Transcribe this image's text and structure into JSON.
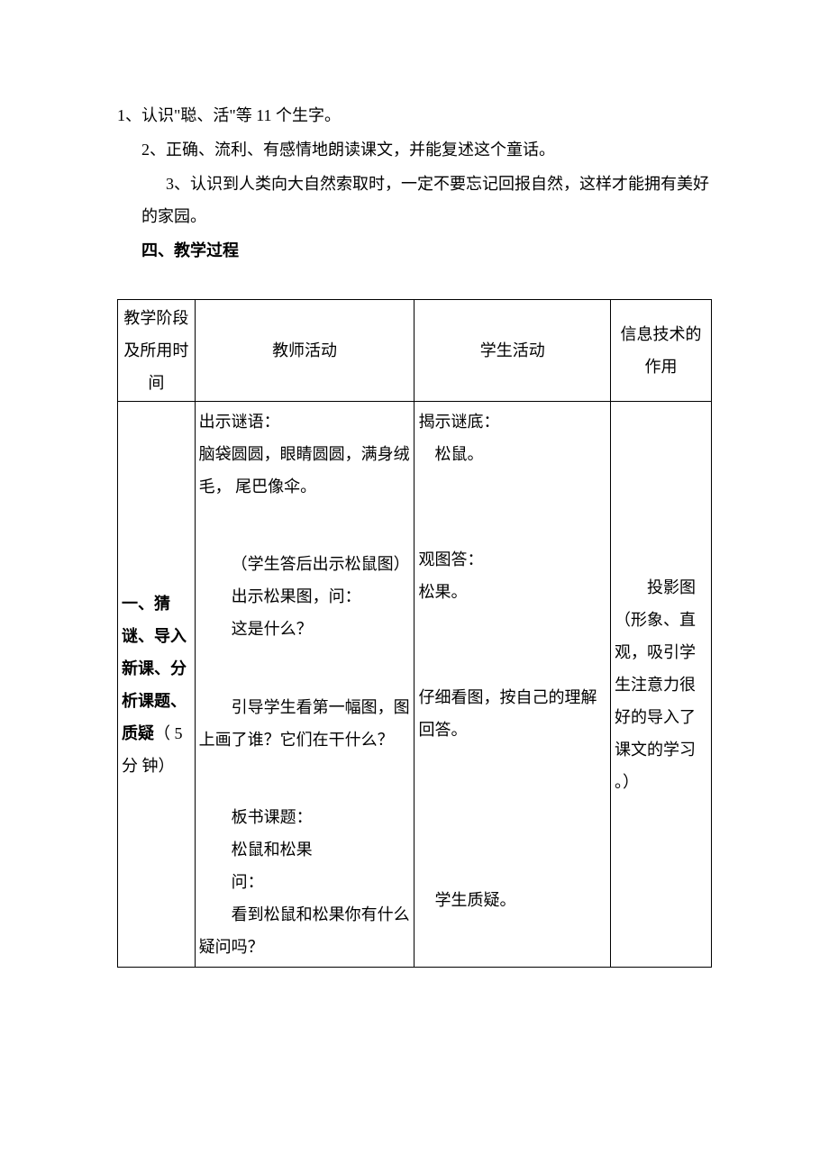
{
  "intro": {
    "line1": "1、认识\"聪、活\"等 11 个生字。",
    "line2": "2、正确、流利、有感情地朗读课文，并能复述这个童话。",
    "line3": "3、认识到人类向大自然索取时，一定不要忘记回报自然，这样才能拥有美好的家园。",
    "line4": "四、教学过程"
  },
  "table": {
    "colors": {
      "border": "#000000",
      "background": "#ffffff",
      "text": "#000000"
    },
    "header": {
      "stage": "教学阶段及所用时间",
      "teacher": "教师活动",
      "student": "学生活动",
      "it": "信息技术的作用"
    },
    "row1": {
      "stage": {
        "prefix": "一、猜谜、导入新课、分析课题、质疑",
        "suffix": "（ 5 分 钟）"
      },
      "teacher": {
        "b1_l1": "出示谜语：",
        "b1_l2": "脑袋圆圆，眼睛圆圆，满身绒毛，  尾巴像伞。",
        "b2_l1": "（学生答后出示松鼠图）",
        "b2_l2": "出示松果图，问：",
        "b2_l3": "这是什么？",
        "b3_l1": "引导学生看第一幅图，图上画了谁？它们在干什么？",
        "b4_l1": "板书课题：",
        "b4_l2": "松鼠和松果",
        "b4_l3": "问：",
        "b4_l4": "看到松鼠和松果你有什么疑问吗？"
      },
      "student": {
        "b1_l1": "揭示谜底：",
        "b1_l2": "松鼠。",
        "b2_l1": "观图答：",
        "b2_l2": "松果。",
        "b3_l1": "仔细看图，按自己的理解回答。",
        "b4_l1": "学生质疑。"
      },
      "it": {
        "text": "投影图（形象、直观，吸引学生注意力很好的导入了课文的学习  。）"
      }
    }
  }
}
